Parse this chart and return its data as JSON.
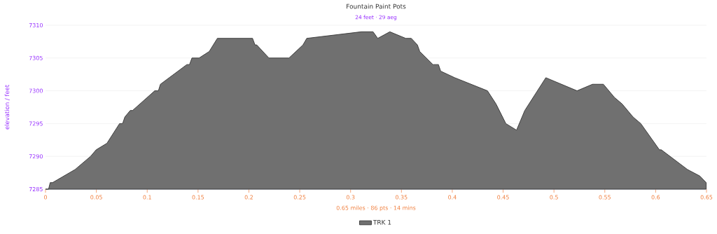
{
  "chart_data": {
    "type": "area",
    "title": "Fountain Paint Pots",
    "subtitle": "24 feet · 29 aeg",
    "ylabel": "elevation / feet",
    "annotations": [
      "0.65 miles · 86 pts · 14 mins"
    ],
    "x": [
      0,
      0.003,
      0.0046,
      0.0069,
      0.0291,
      0.0443,
      0.0498,
      0.0604,
      0.0728,
      0.0758,
      0.078,
      0.0833,
      0.0856,
      0.1074,
      0.111,
      0.113,
      0.139,
      0.1416,
      0.144,
      0.151,
      0.161,
      0.169,
      0.2036,
      0.206,
      0.2077,
      0.2197,
      0.2394,
      0.2532,
      0.2569,
      0.3106,
      0.3221,
      0.3267,
      0.3386,
      0.3542,
      0.3597,
      0.3657,
      0.368,
      0.381,
      0.3864,
      0.3886,
      0.4024,
      0.4346,
      0.443,
      0.4527,
      0.4632,
      0.4713,
      0.492,
      0.5227,
      0.5379,
      0.5486,
      0.5594,
      0.567,
      0.5778,
      0.5854,
      0.6037,
      0.6056,
      0.6313,
      0.6435,
      0.6497
    ],
    "series": [
      {
        "name": "TRK 1",
        "color": "#707070",
        "values": [
          7285,
          7285,
          7286,
          7286,
          7288,
          7290,
          7291,
          7292,
          7295,
          7295,
          7296,
          7297,
          7297,
          7300,
          7300,
          7301,
          7304,
          7304,
          7305,
          7305,
          7306,
          7308,
          7308,
          7307,
          7307,
          7305,
          7305,
          7307,
          7308,
          7309,
          7309,
          7308,
          7309,
          7308,
          7308,
          7307,
          7306,
          7304,
          7304,
          7303,
          7302,
          7300,
          7298,
          7295,
          7294,
          7297,
          7302,
          7300,
          7301,
          7301,
          7299,
          7298,
          7296,
          7295,
          7291,
          7291,
          7288,
          7287,
          7286
        ]
      }
    ],
    "xlim": [
      0,
      0.65
    ],
    "ylim": [
      7285,
      7310
    ],
    "xticks": [
      0,
      0.05,
      0.1,
      0.15,
      0.2,
      0.25,
      0.3,
      0.35,
      0.4,
      0.45,
      0.5,
      0.55,
      0.6,
      0.65
    ],
    "yticks": [
      7285,
      7290,
      7295,
      7300,
      7305,
      7310
    ],
    "grid": "y",
    "legend": "bottom",
    "marker": "none"
  }
}
